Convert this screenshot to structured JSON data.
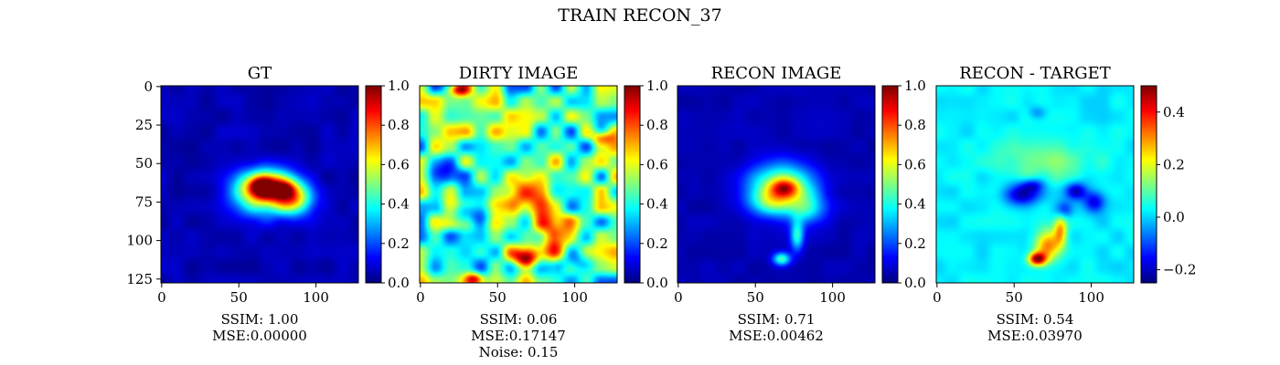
{
  "chart_data": {
    "type": "heatmap",
    "suptitle": "TRAIN RECON_37",
    "colormap": "jet",
    "panels": [
      {
        "title": "GT",
        "x_ticks": [
          0,
          50,
          100
        ],
        "y_ticks": [
          0,
          25,
          50,
          75,
          100,
          125
        ],
        "show_y_ticks": true,
        "xlim": [
          0,
          127
        ],
        "ylim": [
          127,
          0
        ],
        "colorbar": {
          "range": [
            0.0,
            1.0
          ],
          "ticks": [
            "0.0",
            "0.2",
            "0.4",
            "0.6",
            "0.8",
            "1.0"
          ]
        },
        "caption": [
          "SSIM: 1.00",
          "MSE:0.00000"
        ],
        "background": 0.05,
        "blobs": [
          {
            "x": 66,
            "y": 64,
            "sx": 10,
            "sy": 7,
            "amp": 0.45
          },
          {
            "x": 80,
            "y": 66,
            "sx": 9,
            "sy": 7,
            "amp": 0.4
          },
          {
            "x": 62,
            "y": 70,
            "sx": 12,
            "sy": 10,
            "amp": 0.45
          },
          {
            "x": 85,
            "y": 74,
            "sx": 9,
            "sy": 7,
            "amp": 0.5
          },
          {
            "x": 65,
            "y": 65,
            "sx": 5,
            "sy": 4,
            "amp": 0.4
          },
          {
            "x": 79,
            "y": 67,
            "sx": 4,
            "sy": 3,
            "amp": 0.3
          }
        ],
        "noise": 0.03
      },
      {
        "title": "DIRTY IMAGE",
        "x_ticks": [
          0,
          50,
          100
        ],
        "y_ticks": [],
        "show_y_ticks": false,
        "xlim": [
          0,
          127
        ],
        "ylim": [
          127,
          0
        ],
        "colorbar": {
          "range": [
            0.0,
            1.0
          ],
          "ticks": [
            "0.0",
            "0.2",
            "0.4",
            "0.6",
            "0.8",
            "1.0"
          ]
        },
        "caption": [
          "SSIM: 0.06",
          "MSE:0.17147",
          "Noise: 0.15"
        ],
        "background": 0.45,
        "blobs": [
          {
            "x": 68,
            "y": 70,
            "sx": 10,
            "sy": 8,
            "amp": 0.3
          },
          {
            "x": 85,
            "y": 95,
            "sx": 8,
            "sy": 14,
            "amp": 0.35
          },
          {
            "x": 68,
            "y": 112,
            "sx": 6,
            "sy": 4,
            "amp": 0.45
          },
          {
            "x": 24,
            "y": 2,
            "sx": 5,
            "sy": 3,
            "amp": 0.45
          },
          {
            "x": 35,
            "y": 125,
            "sx": 4,
            "sy": 3,
            "amp": 0.4
          },
          {
            "x": 118,
            "y": 33,
            "sx": 5,
            "sy": 3,
            "amp": 0.35
          },
          {
            "x": 30,
            "y": 85,
            "sx": 12,
            "sy": 5,
            "amp": -0.25
          },
          {
            "x": 15,
            "y": 55,
            "sx": 8,
            "sy": 6,
            "amp": -0.25
          },
          {
            "x": 100,
            "y": 110,
            "sx": 8,
            "sy": 6,
            "amp": -0.25
          }
        ],
        "noise": 0.28
      },
      {
        "title": "RECON IMAGE",
        "x_ticks": [
          0,
          50,
          100
        ],
        "y_ticks": [],
        "show_y_ticks": false,
        "xlim": [
          0,
          127
        ],
        "ylim": [
          127,
          0
        ],
        "colorbar": {
          "range": [
            0.0,
            1.0
          ],
          "ticks": [
            "0.0",
            "0.2",
            "0.4",
            "0.6",
            "0.8",
            "1.0"
          ]
        },
        "caption": [
          "SSIM: 0.71",
          "MSE:0.00462"
        ],
        "background": 0.05,
        "blobs": [
          {
            "x": 67,
            "y": 66,
            "sx": 15,
            "sy": 11,
            "amp": 0.55
          },
          {
            "x": 69,
            "y": 66,
            "sx": 6,
            "sy": 4,
            "amp": 0.35
          },
          {
            "x": 84,
            "y": 80,
            "sx": 8,
            "sy": 7,
            "amp": 0.25
          },
          {
            "x": 60,
            "y": 75,
            "sx": 10,
            "sy": 6,
            "amp": 0.2
          },
          {
            "x": 77,
            "y": 97,
            "sx": 3,
            "sy": 7,
            "amp": 0.35
          },
          {
            "x": 67,
            "y": 112,
            "sx": 4,
            "sy": 3,
            "amp": 0.4
          }
        ],
        "noise": 0.02
      },
      {
        "title": "RECON - TARGET",
        "x_ticks": [
          0,
          50,
          100
        ],
        "y_ticks": [],
        "show_y_ticks": false,
        "xlim": [
          0,
          127
        ],
        "ylim": [
          127,
          0
        ],
        "colorbar": {
          "range": [
            -0.25,
            0.5
          ],
          "ticks": [
            "−0.2",
            "0.0",
            "0.2",
            "0.4"
          ],
          "tick_values": [
            -0.2,
            0.0,
            0.2,
            0.4
          ]
        },
        "caption": [
          "SSIM: 0.54",
          "MSE:0.03970"
        ],
        "background": 0.02,
        "blobs": [
          {
            "x": 70,
            "y": 48,
            "sx": 22,
            "sy": 10,
            "amp": 0.1
          },
          {
            "x": 55,
            "y": 70,
            "sx": 8,
            "sy": 5,
            "amp": -0.25
          },
          {
            "x": 62,
            "y": 64,
            "sx": 5,
            "sy": 3,
            "amp": -0.15
          },
          {
            "x": 90,
            "y": 68,
            "sx": 5,
            "sy": 4,
            "amp": -0.25
          },
          {
            "x": 102,
            "y": 75,
            "sx": 5,
            "sy": 5,
            "amp": -0.2
          },
          {
            "x": 82,
            "y": 80,
            "sx": 4,
            "sy": 4,
            "amp": -0.15
          },
          {
            "x": 72,
            "y": 103,
            "sx": 6,
            "sy": 7,
            "amp": 0.3
          },
          {
            "x": 80,
            "y": 93,
            "sx": 3,
            "sy": 7,
            "amp": 0.25
          },
          {
            "x": 65,
            "y": 112,
            "sx": 4,
            "sy": 3,
            "amp": 0.45
          },
          {
            "x": 65,
            "y": 17,
            "sx": 4,
            "sy": 3,
            "amp": -0.08
          }
        ],
        "noise": 0.025
      }
    ]
  }
}
